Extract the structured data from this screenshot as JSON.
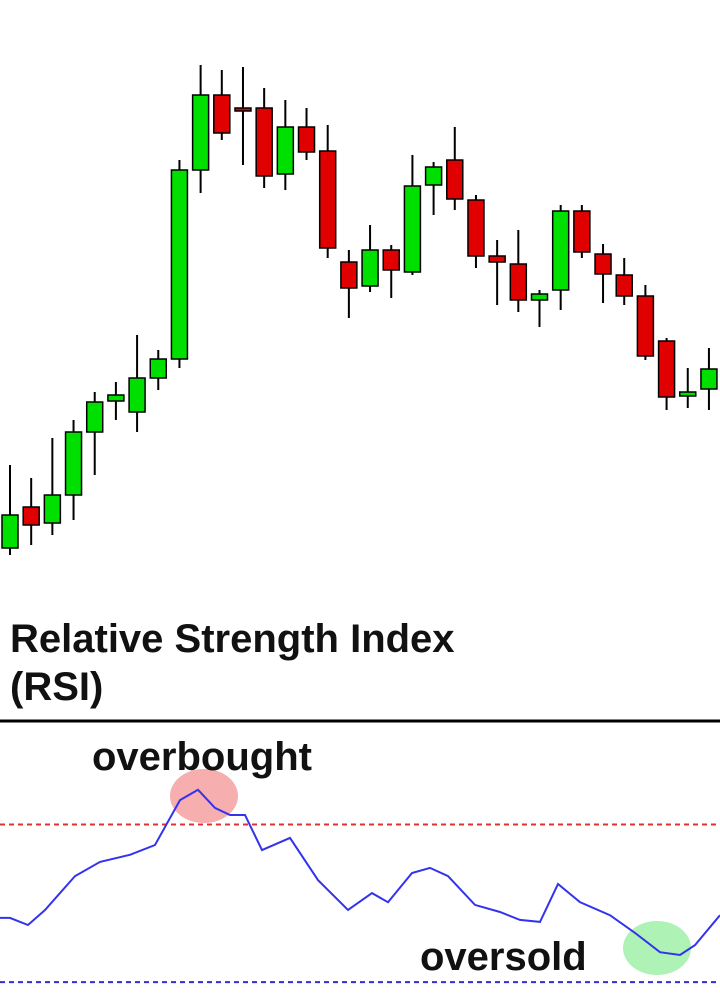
{
  "chart_data": [
    {
      "type": "candlestick",
      "open": [
        52,
        93,
        77,
        105,
        168,
        199,
        188,
        222,
        241,
        430,
        505,
        492,
        492,
        426,
        473,
        449,
        338,
        314,
        350,
        328,
        415,
        440,
        400,
        344,
        336,
        300,
        310,
        389,
        346,
        325,
        304,
        259,
        204,
        211
      ],
      "high": [
        135,
        122,
        162,
        180,
        208,
        218,
        265,
        250,
        440,
        535,
        530,
        533,
        512,
        500,
        492,
        475,
        350,
        375,
        355,
        445,
        438,
        473,
        405,
        360,
        370,
        310,
        395,
        395,
        356,
        342,
        315,
        262,
        232,
        252
      ],
      "low": [
        45,
        55,
        65,
        80,
        125,
        180,
        168,
        210,
        232,
        407,
        460,
        435,
        412,
        410,
        440,
        342,
        282,
        308,
        302,
        325,
        385,
        390,
        332,
        295,
        288,
        273,
        290,
        342,
        297,
        295,
        240,
        190,
        192,
        190
      ],
      "close": [
        85,
        75,
        105,
        168,
        198,
        205,
        222,
        241,
        430,
        505,
        467,
        489,
        424,
        473,
        448,
        352,
        312,
        350,
        330,
        414,
        433,
        401,
        344,
        338,
        300,
        306,
        389,
        348,
        326,
        304,
        244,
        203,
        208,
        231
      ],
      "up_color": "#00e000",
      "down_color": "#e00000",
      "ylim": [
        0,
        600
      ]
    },
    {
      "type": "line",
      "title_lines": [
        "Relative Strength Index",
        "(RSI)"
      ],
      "x": [
        0,
        10,
        28,
        45,
        75,
        100,
        130,
        155,
        180,
        198,
        215,
        230,
        245,
        262,
        290,
        318,
        348,
        372,
        388,
        412,
        430,
        448,
        475,
        500,
        520,
        540,
        558,
        580,
        610,
        635,
        660,
        680,
        695,
        720
      ],
      "values": [
        46.3,
        46.3,
        44.5,
        48.3,
        56.9,
        60.5,
        62.3,
        64.8,
        76.2,
        78.8,
        74.2,
        72.4,
        72.4,
        63.5,
        66.6,
        55.9,
        48.3,
        52.6,
        50.3,
        57.7,
        59.0,
        56.9,
        49.6,
        47.8,
        45.8,
        45.3,
        54.9,
        50.3,
        47.0,
        42.5,
        37.6,
        36.9,
        39.4,
        47.0
      ],
      "color": "#3333ee",
      "xlim": [
        0,
        720
      ],
      "ylim": [
        27,
        96
      ],
      "levels": [
        {
          "value": 70,
          "color": "#e03030"
        },
        {
          "value": 30,
          "color": "#3030d0"
        }
      ],
      "annotations": [
        "overbought",
        "oversold"
      ]
    }
  ]
}
